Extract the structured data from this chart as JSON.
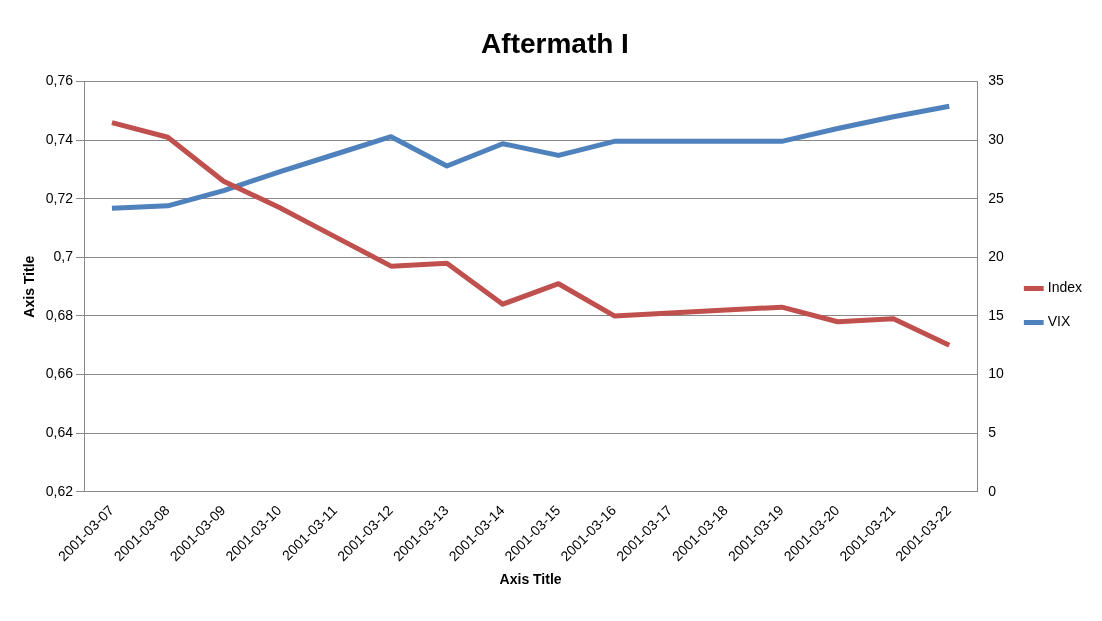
{
  "chart_data": {
    "type": "line",
    "title": "Aftermath I",
    "xlabel": "Axis Title",
    "ylabel": "Axis Title",
    "categories": [
      "2001-03-07",
      "2001-03-08",
      "2001-03-09",
      "2001-03-10",
      "2001-03-11",
      "2001-03-12",
      "2001-03-13",
      "2001-03-14",
      "2001-03-15",
      "2001-03-16",
      "2001-03-17",
      "2001-03-18",
      "2001-03-19",
      "2001-03-20",
      "2001-03-21",
      "2001-03-22"
    ],
    "series": [
      {
        "name": "Index",
        "color": "#c0504d",
        "values": [
          0.746,
          0.741,
          0.726,
          0.717,
          0.707,
          0.697,
          0.698,
          0.684,
          0.691,
          0.68,
          0.681,
          0.682,
          0.683,
          0.678,
          0.679,
          0.67
        ]
      },
      {
        "name": "VIX",
        "color": "#4f81bd",
        "axis": "y2",
        "values": [
          24.2,
          24.4,
          25.7,
          27.3,
          28.8,
          30.3,
          27.8,
          29.7,
          28.7,
          29.9,
          29.9,
          29.9,
          29.9,
          31.0,
          32.0,
          32.9
        ]
      }
    ],
    "ylim": [
      0.62,
      0.76
    ],
    "yticks": [
      {
        "value": 0.62,
        "label": "0,62"
      },
      {
        "value": 0.64,
        "label": "0,64"
      },
      {
        "value": 0.66,
        "label": "0,66"
      },
      {
        "value": 0.68,
        "label": "0,68"
      },
      {
        "value": 0.7,
        "label": "0,7"
      },
      {
        "value": 0.72,
        "label": "0,72"
      },
      {
        "value": 0.74,
        "label": "0,74"
      },
      {
        "value": 0.76,
        "label": "0,76"
      }
    ],
    "y2lim": [
      0,
      35
    ],
    "y2ticks": [
      0,
      5,
      10,
      15,
      20,
      25,
      30,
      35
    ],
    "grid": "y",
    "legend": "right",
    "marker": "none",
    "line_style": "solid"
  }
}
